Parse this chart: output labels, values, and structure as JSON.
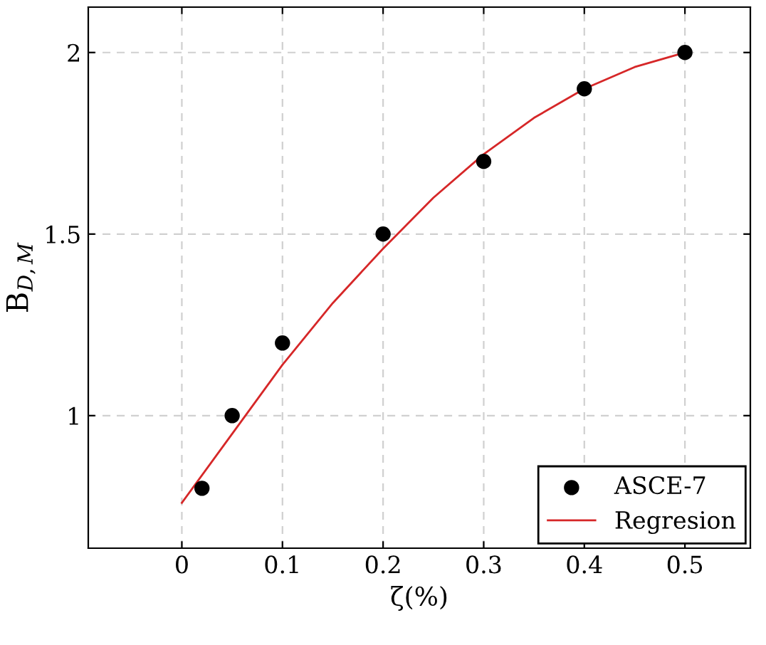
{
  "chart_data": {
    "type": "scatter",
    "xlabel": "ζ(%)",
    "ylabel": "B$_{D,M}$",
    "xlim": [
      -0.093,
      0.565
    ],
    "xticks": [
      0,
      0.1,
      0.2,
      0.3,
      0.4,
      0.5
    ],
    "ylim": [
      0.635,
      2.125
    ],
    "yticks": [
      1,
      1.5,
      2
    ],
    "grid": true,
    "legend": "bottom right",
    "series": [
      {
        "name": "ASCE-7",
        "marker": "circle",
        "color": "#000000",
        "x": [
          0.02,
          0.05,
          0.1,
          0.2,
          0.3,
          0.4,
          0.5
        ],
        "values": [
          0.8,
          1.0,
          1.2,
          1.5,
          1.7,
          1.9,
          2.0
        ]
      },
      {
        "name": "Regresion",
        "type": "line",
        "marker": "none",
        "line_style": "solid",
        "color": "#d62728",
        "x": [
          0,
          0.05,
          0.1,
          0.15,
          0.2,
          0.25,
          0.3,
          0.35,
          0.4,
          0.45,
          0.5
        ],
        "values": [
          0.76,
          0.95,
          1.14,
          1.31,
          1.46,
          1.6,
          1.72,
          1.82,
          1.9,
          1.96,
          2.0
        ]
      }
    ]
  }
}
